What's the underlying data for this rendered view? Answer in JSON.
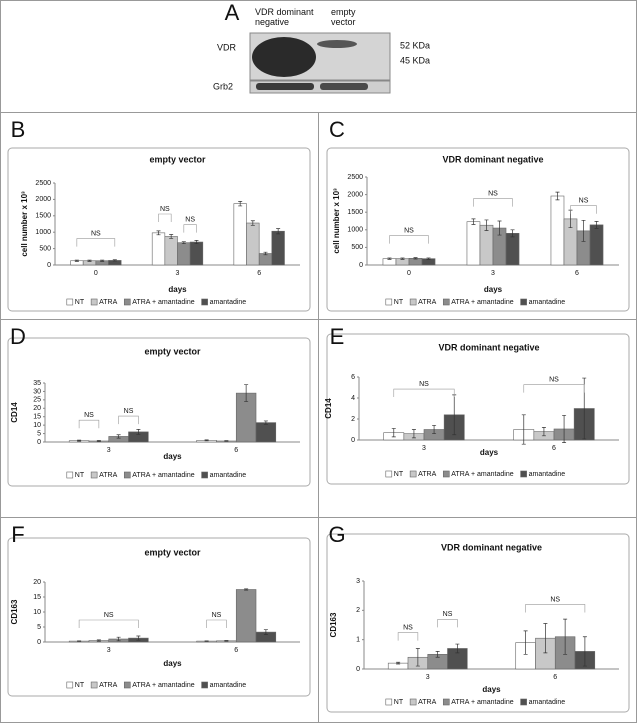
{
  "panel_a": {
    "label": "A",
    "columns": [
      "VDR dominant negative",
      "empty vector"
    ],
    "rows": [
      "VDR",
      "Grb2"
    ],
    "markers": [
      "52 KDa",
      "45 KDa"
    ]
  },
  "chart_data": [
    {
      "type": "bar",
      "panel": "B",
      "title": "empty vector",
      "xlabel": "days",
      "ylabel": "cell number x 10³",
      "categories": [
        "0",
        "3",
        "6"
      ],
      "ylim": [
        0,
        2500
      ],
      "yticks": [
        0,
        500,
        1000,
        1500,
        2000,
        2500
      ],
      "annotations": [
        "NS",
        "NS",
        "NS"
      ],
      "series": [
        {
          "name": "NT",
          "color": "#ffffff",
          "values": [
            130,
            980,
            1870
          ],
          "errors": [
            20,
            60,
            70
          ]
        },
        {
          "name": "ATRA",
          "color": "#c8c8c8",
          "values": [
            130,
            870,
            1280
          ],
          "errors": [
            20,
            60,
            70
          ]
        },
        {
          "name": "ATRA + amantadine",
          "color": "#8c8c8c",
          "values": [
            130,
            680,
            350
          ],
          "errors": [
            20,
            30,
            40
          ]
        },
        {
          "name": "amantadine",
          "color": "#505050",
          "values": [
            140,
            700,
            1030
          ],
          "errors": [
            20,
            50,
            80
          ]
        }
      ]
    },
    {
      "type": "bar",
      "panel": "C",
      "title": "VDR dominant negative",
      "xlabel": "days",
      "ylabel": "cell number x 10³",
      "categories": [
        "0",
        "3",
        "6"
      ],
      "ylim": [
        0,
        2500
      ],
      "yticks": [
        0,
        500,
        1000,
        1500,
        2000,
        2500
      ],
      "annotations": [
        "NS",
        "NS",
        "NS"
      ],
      "series": [
        {
          "name": "NT",
          "color": "#ffffff",
          "values": [
            180,
            1230,
            1960
          ],
          "errors": [
            20,
            80,
            110
          ]
        },
        {
          "name": "ATRA",
          "color": "#c8c8c8",
          "values": [
            180,
            1130,
            1310
          ],
          "errors": [
            20,
            150,
            250
          ]
        },
        {
          "name": "ATRA + amantadine",
          "color": "#8c8c8c",
          "values": [
            190,
            1050,
            970
          ],
          "errors": [
            20,
            200,
            300
          ]
        },
        {
          "name": "amantadine",
          "color": "#505050",
          "values": [
            180,
            900,
            1140
          ],
          "errors": [
            20,
            100,
            100
          ]
        }
      ]
    },
    {
      "type": "bar",
      "panel": "D",
      "title": "empty vector",
      "xlabel": "days",
      "ylabel": "CD14",
      "categories": [
        "3",
        "6"
      ],
      "ylim": [
        0,
        35
      ],
      "yticks": [
        0,
        5,
        10,
        15,
        20,
        25,
        30,
        35
      ],
      "annotations": [
        "NS",
        "NS"
      ],
      "series": [
        {
          "name": "NT",
          "color": "#ffffff",
          "values": [
            0.8,
            1.0
          ],
          "errors": [
            0.3,
            0.3
          ]
        },
        {
          "name": "ATRA",
          "color": "#c8c8c8",
          "values": [
            0.6,
            0.6
          ],
          "errors": [
            0.3,
            0.2
          ]
        },
        {
          "name": "ATRA + amantadine",
          "color": "#8c8c8c",
          "values": [
            3.3,
            29
          ],
          "errors": [
            1,
            5
          ]
        },
        {
          "name": "amantadine",
          "color": "#505050",
          "values": [
            6,
            11.5
          ],
          "errors": [
            1.5,
            1
          ]
        }
      ]
    },
    {
      "type": "bar",
      "panel": "E",
      "title": "VDR dominant negative",
      "xlabel": "days",
      "ylabel": "CD14",
      "categories": [
        "3",
        "6"
      ],
      "ylim": [
        0,
        6
      ],
      "yticks": [
        0,
        2,
        4,
        6
      ],
      "annotations": [
        "NS",
        "NS"
      ],
      "series": [
        {
          "name": "NT",
          "color": "#ffffff",
          "values": [
            0.7,
            1.0
          ],
          "errors": [
            0.4,
            1.4
          ]
        },
        {
          "name": "ATRA",
          "color": "#c8c8c8",
          "values": [
            0.6,
            0.8
          ],
          "errors": [
            0.4,
            0.4
          ]
        },
        {
          "name": "ATRA + amantadine",
          "color": "#8c8c8c",
          "values": [
            1.0,
            1.05
          ],
          "errors": [
            0.4,
            1.3
          ]
        },
        {
          "name": "amantadine",
          "color": "#505050",
          "values": [
            2.4,
            3.0
          ],
          "errors": [
            1.9,
            2.9
          ]
        }
      ]
    },
    {
      "type": "bar",
      "panel": "F",
      "title": "empty vector",
      "xlabel": "days",
      "ylabel": "CD163",
      "categories": [
        "3",
        "6"
      ],
      "ylim": [
        0,
        20
      ],
      "yticks": [
        0,
        5,
        10,
        15,
        20
      ],
      "annotations": [
        "NS",
        "NS"
      ],
      "series": [
        {
          "name": "NT",
          "color": "#ffffff",
          "values": [
            0.3,
            0.3
          ],
          "errors": [
            0.1,
            0.1
          ]
        },
        {
          "name": "ATRA",
          "color": "#c8c8c8",
          "values": [
            0.5,
            0.4
          ],
          "errors": [
            0.2,
            0.1
          ]
        },
        {
          "name": "ATRA + amantadine",
          "color": "#8c8c8c",
          "values": [
            1.0,
            17.5
          ],
          "errors": [
            0.6,
            0.2
          ]
        },
        {
          "name": "amantadine",
          "color": "#505050",
          "values": [
            1.3,
            3.3
          ],
          "errors": [
            0.7,
            0.8
          ]
        }
      ]
    },
    {
      "type": "bar",
      "panel": "G",
      "title": "VDR dominant negative",
      "xlabel": "days",
      "ylabel": "CD163",
      "categories": [
        "3",
        "6"
      ],
      "ylim": [
        0,
        3
      ],
      "yticks": [
        0,
        1,
        2,
        3
      ],
      "annotations": [
        "NS",
        "NS",
        "NS"
      ],
      "series": [
        {
          "name": "NT",
          "color": "#ffffff",
          "values": [
            0.2,
            0.9
          ],
          "errors": [
            0.03,
            0.4
          ]
        },
        {
          "name": "ATRA",
          "color": "#c8c8c8",
          "values": [
            0.4,
            1.05
          ],
          "errors": [
            0.3,
            0.5
          ]
        },
        {
          "name": "ATRA + amantadine",
          "color": "#8c8c8c",
          "values": [
            0.5,
            1.1
          ],
          "errors": [
            0.1,
            0.6
          ]
        },
        {
          "name": "amantadine",
          "color": "#505050",
          "values": [
            0.7,
            0.6
          ],
          "errors": [
            0.15,
            0.5
          ]
        }
      ]
    }
  ]
}
